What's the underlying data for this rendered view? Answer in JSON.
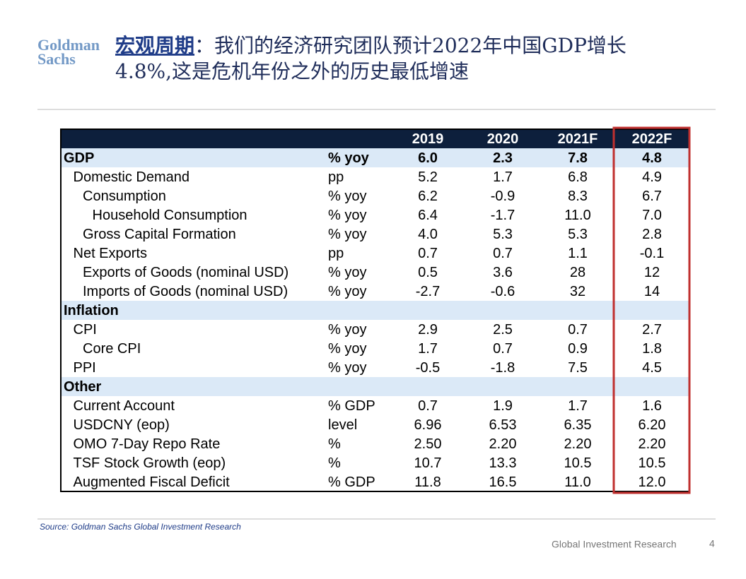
{
  "logo": [
    "Goldman",
    "Sachs"
  ],
  "title": {
    "emphasis": "宏观周期",
    "line1": "：我们的经济研究团队预计2022年中国GDP增长",
    "line2": "4.8%,这是危机年份之外的历史最低增速"
  },
  "table": {
    "header": [
      "2019",
      "2020",
      "2021F",
      "2022F"
    ],
    "rows": [
      [
        "GDP",
        "% yoy",
        "6.0",
        "2.3",
        "7.8",
        "4.8"
      ],
      [
        "Domestic Demand",
        "pp",
        "5.2",
        "1.7",
        "6.8",
        "4.9"
      ],
      [
        "Consumption",
        "% yoy",
        "6.2",
        "-0.9",
        "8.3",
        "6.7"
      ],
      [
        "Household Consumption",
        "% yoy",
        "6.4",
        "-1.7",
        "11.0",
        "7.0"
      ],
      [
        "Gross Capital Formation",
        "% yoy",
        "4.0",
        "5.3",
        "5.3",
        "2.8"
      ],
      [
        "Net Exports",
        "pp",
        "0.7",
        "0.7",
        "1.1",
        "-0.1"
      ],
      [
        "Exports of Goods (nominal USD)",
        "% yoy",
        "0.5",
        "3.6",
        "28",
        "12"
      ],
      [
        "Imports of Goods (nominal USD)",
        "% yoy",
        "-2.7",
        "-0.6",
        "32",
        "14"
      ],
      [
        "Inflation"
      ],
      [
        "CPI",
        "% yoy",
        "2.9",
        "2.5",
        "0.7",
        "2.7"
      ],
      [
        "Core CPI",
        "% yoy",
        "1.7",
        "0.7",
        "0.9",
        "1.8"
      ],
      [
        "PPI",
        "% yoy",
        "-0.5",
        "-1.8",
        "7.5",
        "4.5"
      ],
      [
        "Other"
      ],
      [
        "Current Account",
        "% GDP",
        "0.7",
        "1.9",
        "1.7",
        "1.6"
      ],
      [
        "USDCNY (eop)",
        "level",
        "6.96",
        "6.53",
        "6.35",
        "6.20"
      ],
      [
        "OMO 7-Day Repo Rate",
        "%",
        "2.50",
        "2.20",
        "2.20",
        "2.20"
      ],
      [
        "TSF Stock Growth (eop)",
        "%",
        "10.7",
        "13.3",
        "10.5",
        "10.5"
      ],
      [
        "Augmented Fiscal Deficit",
        "% GDP",
        "11.8",
        "16.5",
        "11.0",
        "12.0"
      ]
    ]
  },
  "footer": {
    "source": "Source: Goldman Sachs Global Investment Research",
    "brand": "Global Investment Research",
    "page": "4"
  }
}
